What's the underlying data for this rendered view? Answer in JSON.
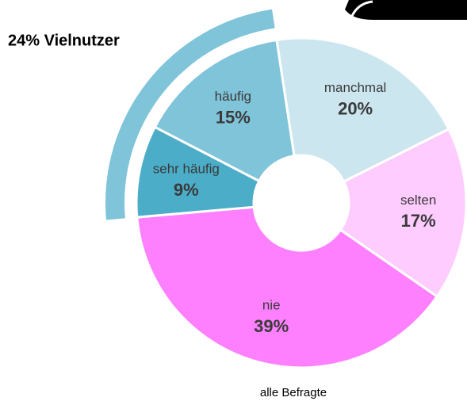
{
  "chart_data": {
    "type": "donut",
    "annotation": "24% Vielnutzer",
    "caption": "alle Befragte",
    "categories": [
      "manchmal",
      "selten",
      "nie",
      "sehr häufig",
      "häufig"
    ],
    "values": [
      20,
      17,
      39,
      9,
      15
    ],
    "value_labels": [
      "20%",
      "17%",
      "39%",
      "9%",
      "15%"
    ],
    "colors": [
      "#cce6f0",
      "#ffccff",
      "#ff80ff",
      "#4badc8",
      "#80c4d9"
    ]
  }
}
